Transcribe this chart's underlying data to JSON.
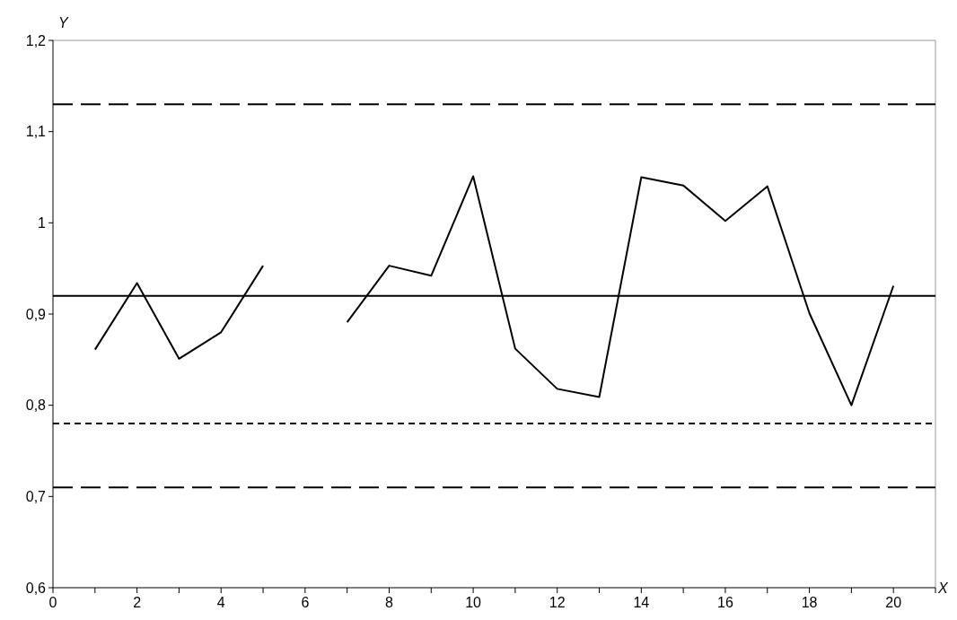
{
  "chart_data": {
    "type": "line",
    "xlabel": "X",
    "ylabel": "Y",
    "x": [
      1,
      2,
      3,
      4,
      5,
      6,
      7,
      8,
      9,
      10,
      11,
      12,
      13,
      14,
      15,
      16,
      17,
      18,
      19,
      20
    ],
    "series": [
      {
        "color": "#000000",
        "values": [
          0.861,
          0.934,
          0.851,
          0.88,
          0.953,
          null,
          0.891,
          0.953,
          0.942,
          1.051,
          0.862,
          0.818,
          0.809,
          1.05,
          1.041,
          1.002,
          1.04,
          0.901,
          0.8,
          0.931
        ]
      }
    ],
    "xlim": [
      0,
      21
    ],
    "xticks": [
      0,
      {
        "value": 1,
        "label": null
      },
      2,
      {
        "value": 3,
        "label": null
      },
      4,
      {
        "value": 5,
        "label": null
      },
      6,
      {
        "value": 7,
        "label": null
      },
      8,
      {
        "value": 9,
        "label": null
      },
      10,
      {
        "value": 11,
        "label": null
      },
      12,
      {
        "value": 13,
        "label": null
      },
      14,
      {
        "value": 15,
        "label": null
      },
      16,
      {
        "value": 17,
        "label": null
      },
      18,
      {
        "value": 19,
        "label": null
      },
      20,
      {
        "value": 21,
        "label": null
      }
    ],
    "ylim": [
      0.6,
      1.2
    ],
    "yticks": [
      {
        "value": 0.6,
        "label": "0,6"
      },
      {
        "value": 0.7,
        "label": "0,7"
      },
      {
        "value": 0.8,
        "label": "0,8"
      },
      {
        "value": 0.9,
        "label": "0,9"
      },
      1,
      {
        "value": 1.1,
        "label": "1,1"
      },
      {
        "value": 1.2,
        "label": "1,2"
      }
    ],
    "ref_lines": [
      {
        "axis": "y",
        "value": 1.13,
        "line_style": "dashed"
      },
      {
        "axis": "y",
        "value": 0.92,
        "line_style": "solid"
      },
      {
        "axis": "y",
        "value": 0.78,
        "line_style": "dotted"
      },
      {
        "axis": "y",
        "value": 0.71,
        "line_style": "dashed"
      }
    ],
    "marker": "none",
    "line_style": "solid"
  }
}
